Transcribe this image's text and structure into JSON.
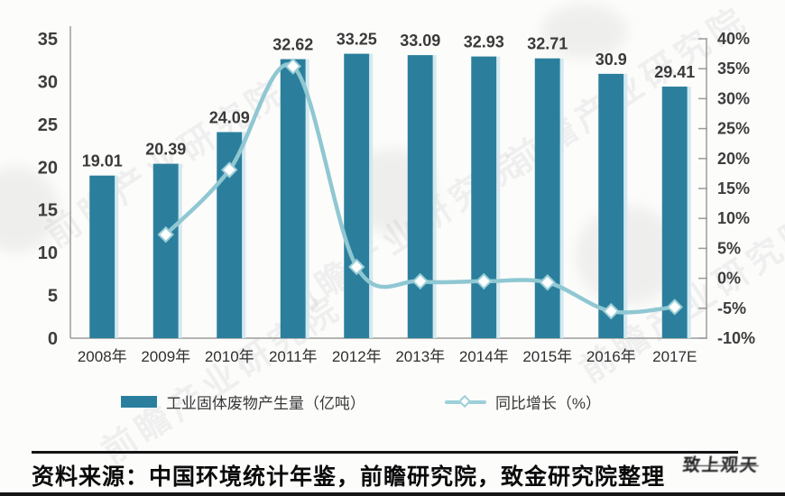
{
  "watermark": {
    "text": "前瞻产业研究院"
  },
  "chart_data": {
    "type": "bar",
    "title": "",
    "categories": [
      "2008年",
      "2009年",
      "2010年",
      "2011年",
      "2012年",
      "2013年",
      "2014年",
      "2015年",
      "2016年",
      "2017E"
    ],
    "series": [
      {
        "name": "工业固体废物产生量（亿吨）",
        "type": "bar",
        "axis": "left",
        "values": [
          19.01,
          20.39,
          24.09,
          32.62,
          33.25,
          33.09,
          32.93,
          32.71,
          30.9,
          29.41
        ],
        "value_labels": [
          "19.01",
          "20.39",
          "24.09",
          "32.62",
          "33.25",
          "33.09",
          "32.93",
          "32.71",
          "30.9",
          "29.41"
        ],
        "color": "#2b7f9d"
      },
      {
        "name": "同比增长（%）",
        "type": "line",
        "axis": "right",
        "values": [
          null,
          7.3,
          18.1,
          35.4,
          1.9,
          -0.5,
          -0.5,
          -0.7,
          -5.5,
          -4.8
        ],
        "color": "#8fc7d2"
      }
    ],
    "left_axis": {
      "min": 0,
      "max": 35,
      "step": 5,
      "tick_labels": [
        "0",
        "5",
        "10",
        "15",
        "20",
        "25",
        "30",
        "35"
      ]
    },
    "right_axis": {
      "min": -10,
      "max": 40,
      "step": 5,
      "tick_labels": [
        "-10%",
        "-5%",
        "0%",
        "5%",
        "10%",
        "15%",
        "20%",
        "25%",
        "30%",
        "35%",
        "40%"
      ]
    },
    "legend": [
      {
        "label": "工业固体废物产生量（亿吨）",
        "marker": "bar"
      },
      {
        "label": "同比增长（%）",
        "marker": "line-diamond"
      }
    ],
    "grid": false,
    "legend_position": "bottom"
  },
  "footer": {
    "source_note": "资料来源：中国环境统计年鉴，前瞻研究院，致金研究院整理",
    "logo_text": "致上观天"
  },
  "colors": {
    "bar": "#2b7f9d",
    "bar_edge_highlight": "#cfe7ee",
    "line": "#8fc7d2",
    "marker_fill": "#ffffff",
    "marker_stroke": "#9ccfd8",
    "axis_line": "#9b9b9b",
    "tick_text": "#333333",
    "value_label_text": "#3a3a3a"
  }
}
